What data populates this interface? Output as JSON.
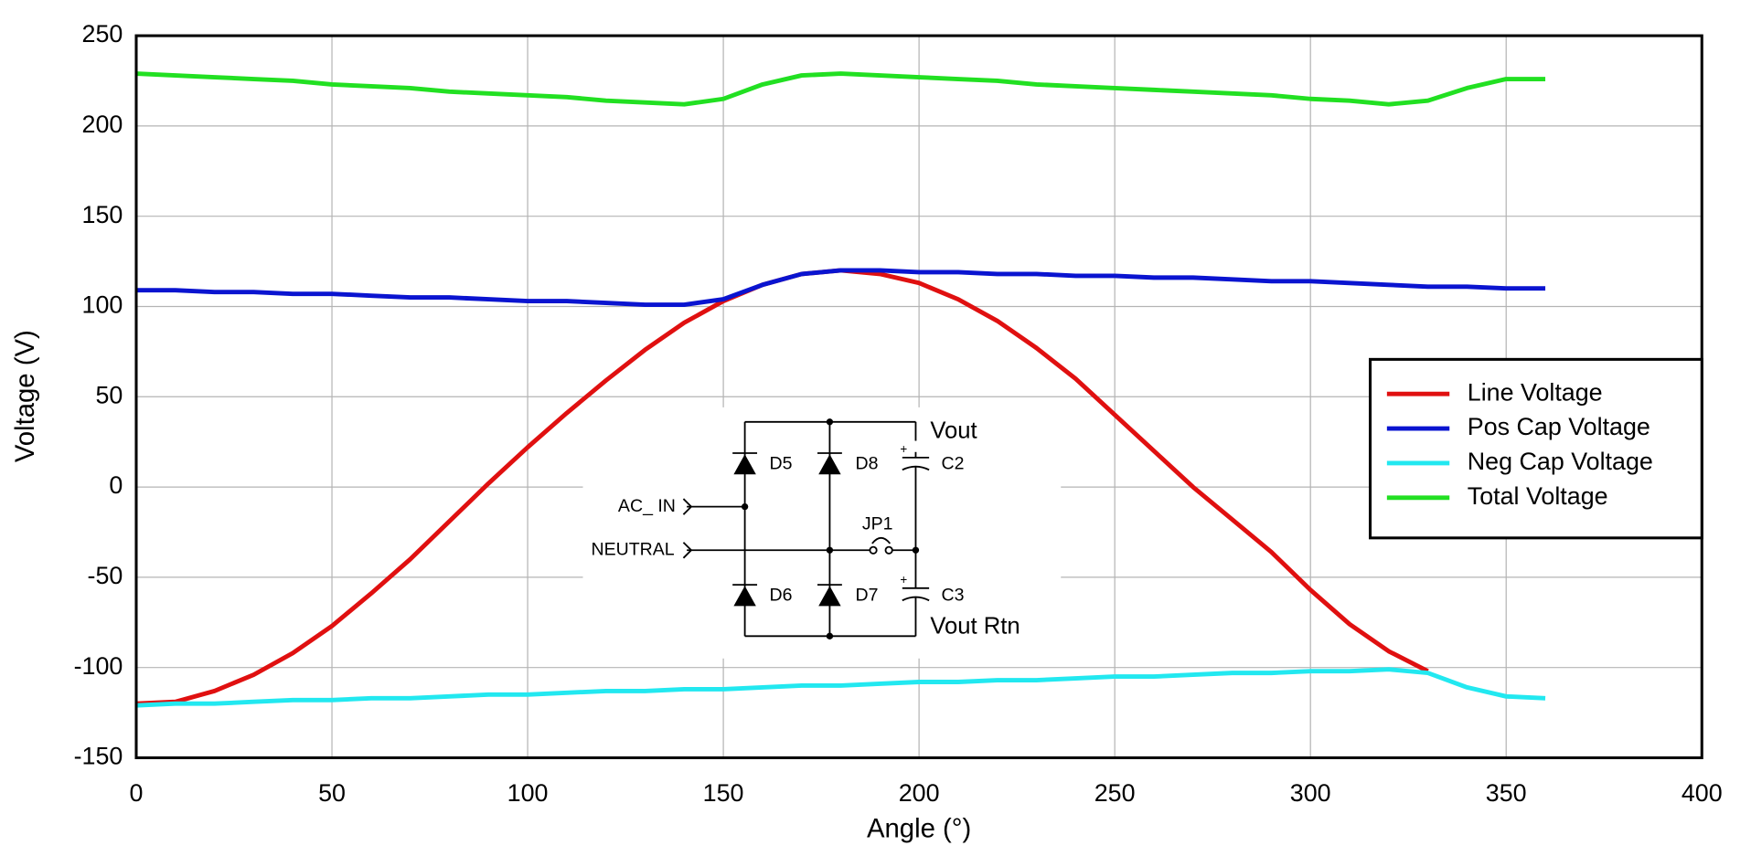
{
  "chart_data": {
    "type": "line",
    "xlabel": "Angle (°)",
    "ylabel": "Voltage (V)",
    "x": [
      0,
      10,
      20,
      30,
      40,
      50,
      60,
      70,
      80,
      90,
      100,
      110,
      120,
      130,
      140,
      150,
      160,
      170,
      180,
      190,
      200,
      210,
      220,
      230,
      240,
      250,
      260,
      270,
      280,
      290,
      300,
      310,
      320,
      330,
      340,
      350,
      360
    ],
    "series": [
      {
        "name": "Line Voltage",
        "color": "#e01010",
        "values": [
          -120,
          -119,
          -113,
          -104,
          -92,
          -77,
          -59,
          -40,
          -19,
          2,
          22,
          41,
          59,
          76,
          91,
          103,
          112,
          118,
          120,
          118,
          113,
          104,
          92,
          77,
          60,
          40,
          20,
          0,
          -18,
          -36,
          -57,
          -76,
          -91,
          -102,
          null,
          null,
          null
        ]
      },
      {
        "name": "Pos Cap Voltage",
        "color": "#0a14d0",
        "values": [
          109,
          109,
          108,
          108,
          107,
          107,
          106,
          105,
          105,
          104,
          103,
          103,
          102,
          101,
          101,
          104,
          112,
          118,
          120,
          120,
          119,
          119,
          118,
          118,
          117,
          117,
          116,
          116,
          115,
          114,
          114,
          113,
          112,
          111,
          111,
          110,
          110
        ]
      },
      {
        "name": "Neg Cap Voltage",
        "color": "#22e8f0",
        "values": [
          -121,
          -120,
          -120,
          -119,
          -118,
          -118,
          -117,
          -117,
          -116,
          -115,
          -115,
          -114,
          -113,
          -113,
          -112,
          -112,
          -111,
          -110,
          -110,
          -109,
          -108,
          -108,
          -107,
          -107,
          -106,
          -105,
          -105,
          -104,
          -103,
          -103,
          -102,
          -102,
          -101,
          -103,
          -111,
          -116,
          -117
        ]
      },
      {
        "name": "Total Voltage",
        "color": "#22e022",
        "values": [
          229,
          228,
          227,
          226,
          225,
          223,
          222,
          221,
          219,
          218,
          217,
          216,
          214,
          213,
          212,
          215,
          223,
          228,
          229,
          228,
          227,
          226,
          225,
          223,
          222,
          221,
          220,
          219,
          218,
          217,
          215,
          214,
          212,
          214,
          221,
          226,
          226
        ]
      }
    ],
    "xlim": [
      0,
      400
    ],
    "xticks": [
      0,
      50,
      100,
      150,
      200,
      250,
      300,
      350,
      400
    ],
    "ylim": [
      -150,
      250
    ],
    "yticks": [
      -150,
      -100,
      -50,
      0,
      50,
      100,
      150,
      200,
      250
    ],
    "grid": true,
    "legend": "right"
  },
  "inset": {
    "labels": {
      "d5": "D5",
      "d8": "D8",
      "d6": "D6",
      "d7": "D7",
      "c2": "C2",
      "c3": "C3",
      "vout": "Vout",
      "vout_rtn": "Vout Rtn",
      "jp1": "JP1",
      "ac_in": "AC_ IN",
      "neutral": "NEUTRAL"
    }
  }
}
